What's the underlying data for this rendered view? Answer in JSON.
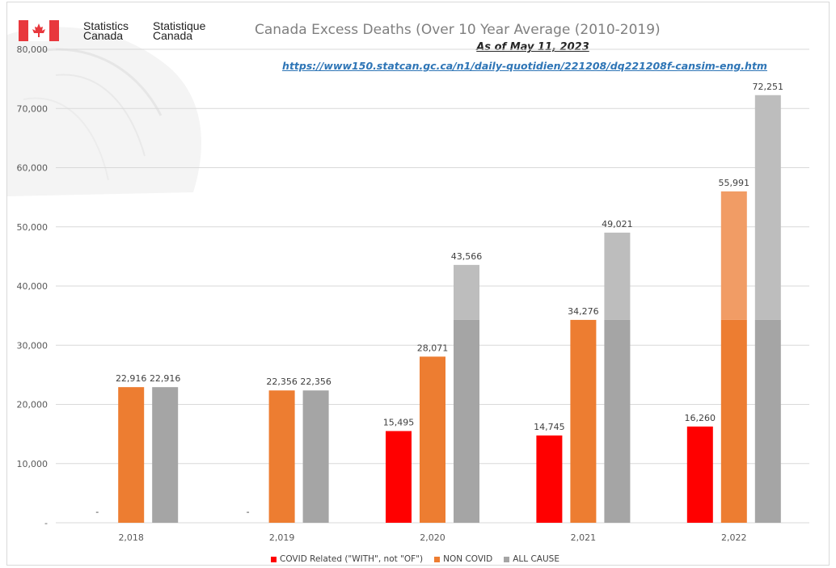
{
  "logo": {
    "en_line1": "Statistics",
    "en_line2": "Canada",
    "fr_line1": "Statistique",
    "fr_line2": "Canada",
    "flag_color": "#e8383d",
    "flag_icon": "maple-leaf-icon"
  },
  "chart_data": {
    "type": "bar",
    "title": "Canada Excess Deaths (Over 10 Year Average (2010-2019)",
    "subtitle": "As of May 11, 2023",
    "source": "https://www150.statcan.gc.ca/n1/daily-quotidien/221208/dq221208f-cansim-eng.htm",
    "categories": [
      "2,018",
      "2,019",
      "2,020",
      "2,021",
      "2,022"
    ],
    "ylim": [
      0,
      80000
    ],
    "yticks": [
      0,
      10000,
      20000,
      30000,
      40000,
      50000,
      60000,
      70000,
      80000
    ],
    "ytick_labels": [
      "-",
      "10,000",
      "20,000",
      "30,000",
      "40,000",
      "50,000",
      "60,000",
      "70,000",
      "80,000"
    ],
    "grid": true,
    "legend_position": "bottom",
    "stack_split_value": 34276,
    "series": [
      {
        "name": "COVID Related (\"WITH\", not \"OF\")",
        "color": "#ff0000",
        "values": [
          0,
          0,
          15495,
          14745,
          16260
        ],
        "labels": [
          "-",
          "-",
          "15,495",
          "14,745",
          "16,260"
        ]
      },
      {
        "name": "NON COVID",
        "color": "#ed7d31",
        "upper_color": "#f19c65",
        "values": [
          22916,
          22356,
          28071,
          34276,
          55991
        ],
        "labels": [
          "22,916",
          "22,356",
          "28,071",
          "34,276",
          "55,991"
        ]
      },
      {
        "name": "ALL CAUSE",
        "color": "#a5a5a5",
        "upper_color": "#bdbdbd",
        "values": [
          22916,
          22356,
          43566,
          49021,
          72251
        ],
        "labels": [
          "22,916",
          "22,356",
          "43,566",
          "49,021",
          "72,251"
        ]
      }
    ]
  }
}
